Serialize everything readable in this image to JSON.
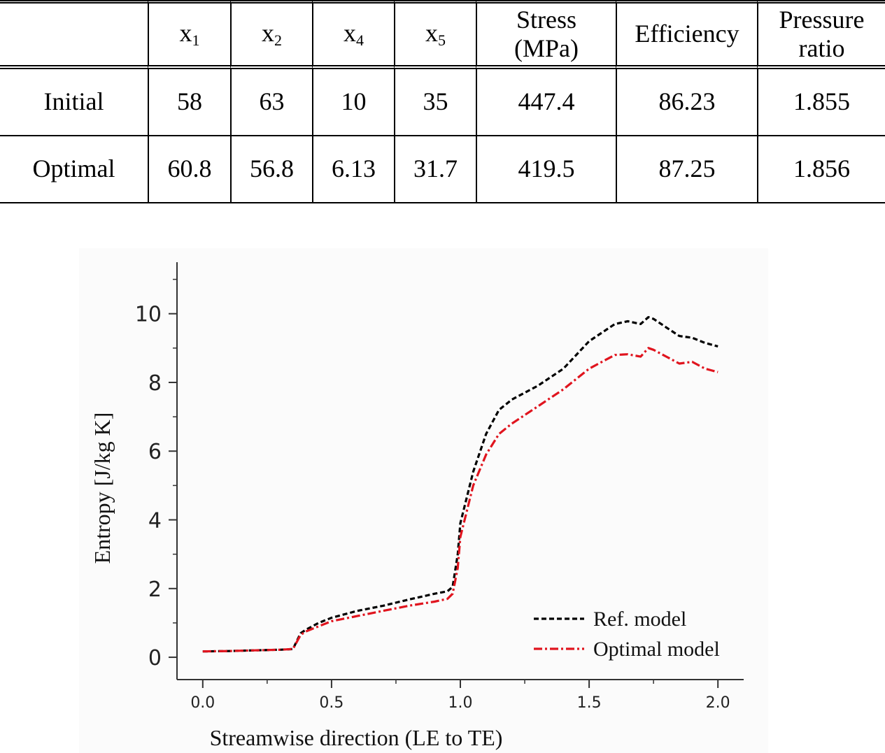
{
  "table": {
    "headers": [
      {
        "main": "",
        "sub": ""
      },
      {
        "main": "x",
        "sub": "1"
      },
      {
        "main": "x",
        "sub": "2"
      },
      {
        "main": "x",
        "sub": "4"
      },
      {
        "main": "x",
        "sub": "5"
      },
      {
        "main": "Stress",
        "line2": "(MPa)"
      },
      {
        "main": "Efficiency"
      },
      {
        "main": "Pressure",
        "line2": "ratio"
      }
    ],
    "rows": [
      {
        "label": "Initial",
        "values": [
          "58",
          "63",
          "10",
          "35",
          "447.4",
          "86.23",
          "1.855"
        ]
      },
      {
        "label": "Optimal",
        "values": [
          "60.8",
          "56.8",
          "6.13",
          "31.7",
          "419.5",
          "87.25",
          "1.856"
        ]
      }
    ]
  },
  "chart_data": {
    "type": "line",
    "title": "",
    "xlabel": "Streamwise direction (LE to TE)",
    "ylabel": "Entropy [J/kg K]",
    "xlim": [
      -0.1,
      2.1
    ],
    "ylim": [
      -0.65,
      11.5
    ],
    "xticks": [
      "0.0",
      "0.5",
      "1.0",
      "1.5",
      "2.0"
    ],
    "xtick_values": [
      0.0,
      0.5,
      1.0,
      1.5,
      2.0
    ],
    "yticks": [
      "0",
      "2",
      "4",
      "6",
      "8",
      "10"
    ],
    "ytick_values": [
      0,
      2,
      4,
      6,
      8,
      10
    ],
    "grid": false,
    "legend_position": "bottom-right",
    "series": [
      {
        "name": "Ref. model",
        "color": "#000000",
        "style": "dashed",
        "x": [
          0.0,
          0.1,
          0.2,
          0.3,
          0.35,
          0.38,
          0.4,
          0.45,
          0.5,
          0.6,
          0.7,
          0.8,
          0.9,
          0.95,
          0.97,
          0.99,
          1.0,
          1.05,
          1.1,
          1.15,
          1.2,
          1.3,
          1.4,
          1.5,
          1.6,
          1.65,
          1.7,
          1.73,
          1.75,
          1.8,
          1.85,
          1.9,
          1.95,
          2.0
        ],
        "y": [
          0.17,
          0.18,
          0.2,
          0.22,
          0.24,
          0.7,
          0.8,
          1.0,
          1.15,
          1.35,
          1.5,
          1.68,
          1.85,
          1.92,
          2.05,
          3.0,
          3.9,
          5.4,
          6.5,
          7.2,
          7.5,
          7.9,
          8.4,
          9.2,
          9.7,
          9.78,
          9.7,
          9.9,
          9.85,
          9.6,
          9.35,
          9.3,
          9.15,
          9.05
        ]
      },
      {
        "name": "Optimal model",
        "color": "#e0141e",
        "style": "dashdot",
        "x": [
          0.0,
          0.1,
          0.2,
          0.3,
          0.35,
          0.38,
          0.4,
          0.45,
          0.5,
          0.6,
          0.7,
          0.8,
          0.9,
          0.95,
          0.97,
          0.99,
          1.0,
          1.05,
          1.1,
          1.15,
          1.2,
          1.3,
          1.4,
          1.5,
          1.6,
          1.65,
          1.7,
          1.73,
          1.75,
          1.8,
          1.85,
          1.9,
          1.95,
          2.0
        ],
        "y": [
          0.17,
          0.18,
          0.2,
          0.22,
          0.24,
          0.65,
          0.75,
          0.9,
          1.05,
          1.2,
          1.35,
          1.5,
          1.62,
          1.7,
          1.85,
          2.6,
          3.5,
          5.0,
          5.9,
          6.5,
          6.8,
          7.3,
          7.8,
          8.4,
          8.8,
          8.82,
          8.75,
          9.0,
          8.95,
          8.75,
          8.55,
          8.6,
          8.4,
          8.3
        ]
      }
    ]
  }
}
